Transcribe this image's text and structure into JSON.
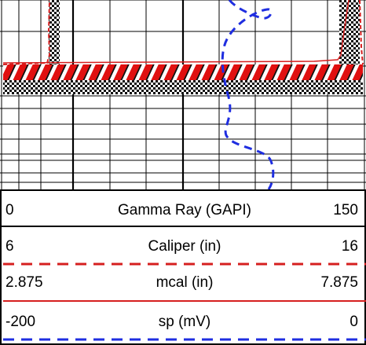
{
  "colors": {
    "grid": "#000000",
    "caliper": "#d61f1f",
    "mcal": "#d61f1f",
    "sp": "#1f2ee0",
    "hatch_red": "#e01010",
    "hatch_black": "#111111"
  },
  "track": {
    "description_icon": "log-track-icon"
  },
  "legend": {
    "gamma": {
      "min": "0",
      "label": "Gamma Ray (GAPI)",
      "max": "150"
    },
    "caliper": {
      "min": "6",
      "label": "Caliper (in)",
      "max": "16"
    },
    "mcal": {
      "min": "2.875",
      "label": "mcal (in)",
      "max": "7.875"
    },
    "sp": {
      "min": "-200",
      "label": "sp (mV)",
      "max": "0"
    }
  }
}
